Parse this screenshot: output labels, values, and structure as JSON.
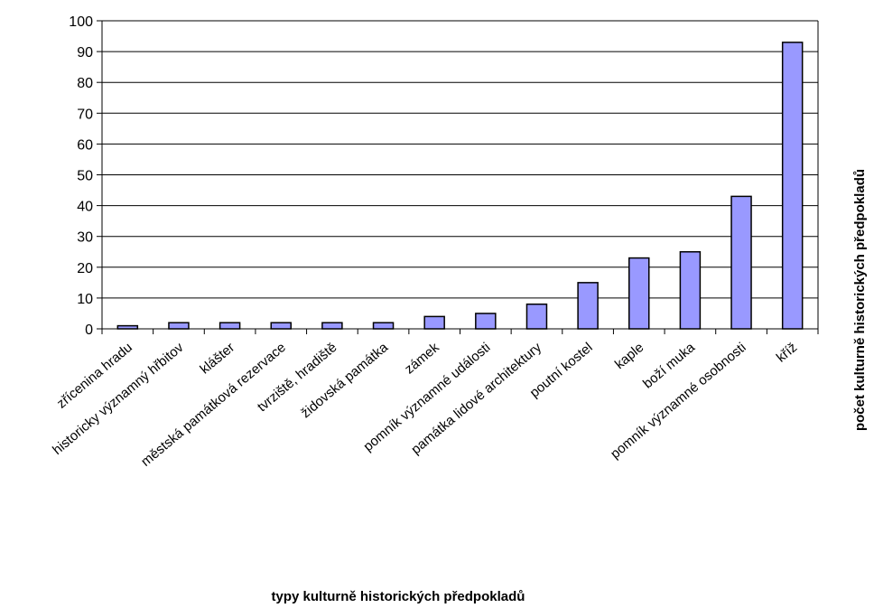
{
  "chart_data": {
    "type": "bar",
    "xlabel": "typy kulturně historických předpokladů",
    "ylabel": "počet kulturně historických předpokladů",
    "ylim": [
      0,
      100
    ],
    "yticks": [
      0,
      10,
      20,
      30,
      40,
      50,
      60,
      70,
      80,
      90,
      100
    ],
    "grid": true,
    "legend": "none",
    "categories": [
      "zřícenina hradu",
      "historicky významný hřbitov",
      "klášter",
      "městská památková rezervace",
      "tvrziště, hradiště",
      "židovská památka",
      "zámek",
      "pomník významné události",
      "památka lidové architektury",
      "poutní kostel",
      "kaple",
      "boží muka",
      "pomník významné osobnosti",
      "kříž"
    ],
    "values": [
      1,
      2,
      2,
      2,
      2,
      2,
      4,
      5,
      8,
      15,
      23,
      25,
      43,
      93
    ],
    "colors": {
      "bar_fill": "#9999ff",
      "bar_stroke": "#000000",
      "grid": "#000000"
    }
  }
}
